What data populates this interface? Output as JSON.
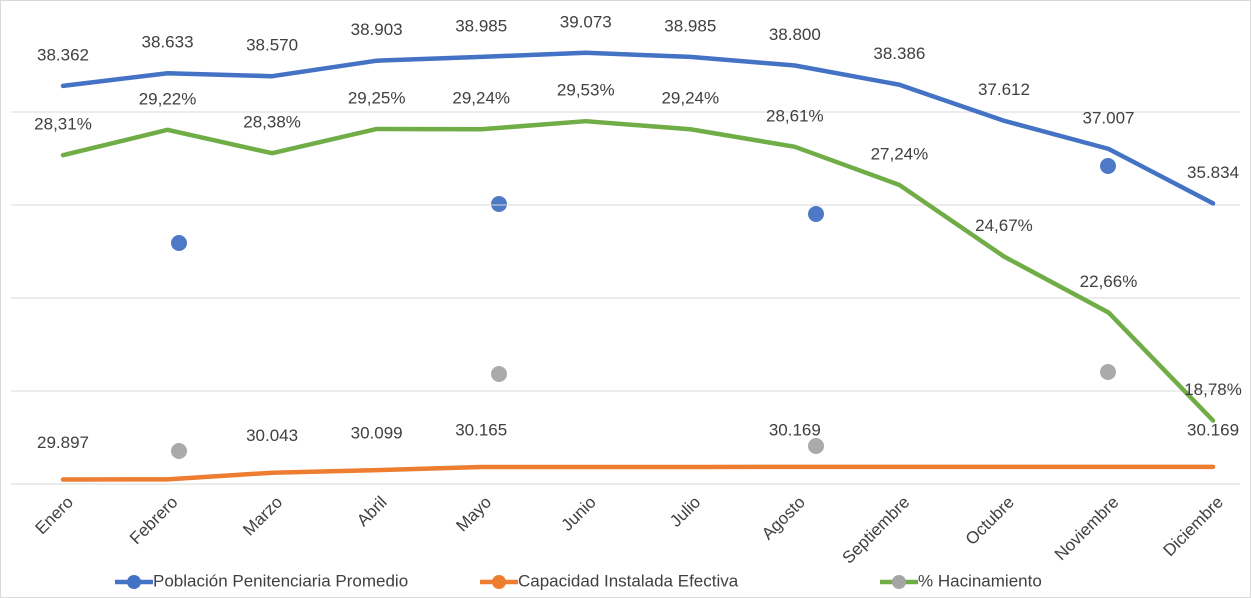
{
  "chart_data": {
    "type": "line",
    "categories": [
      "Enero",
      "Febrero",
      "Marzo",
      "Abril",
      "Mayo",
      "Junio",
      "Julio",
      "Agosto",
      "Septiembre",
      "Octubre",
      "Noviembre",
      "Diciembre"
    ],
    "series": [
      {
        "name": "Población Penitenciaria Promedio",
        "color": "#4472c4",
        "values": [
          38362,
          38633,
          38570,
          38903,
          38985,
          39073,
          38985,
          38800,
          38386,
          37612,
          37007,
          35834
        ],
        "value_labels": [
          "38.362",
          "38.633",
          "38.570",
          "38.903",
          "38.985",
          "39.073",
          "38.985",
          "38.800",
          "38.386",
          "37.612",
          "37.007",
          "35.834"
        ]
      },
      {
        "name": "Capacidad Instalada Efectiva",
        "color": "#ed7d31",
        "values": [
          29897,
          29900,
          30043,
          30099,
          30165,
          30165,
          30165,
          30169,
          30169,
          30169,
          30169,
          30169
        ],
        "value_labels": [
          "29.897",
          null,
          "30.043",
          "30.099",
          "30.165",
          null,
          null,
          "30.169",
          null,
          null,
          null,
          "30.169"
        ]
      },
      {
        "name": "% Hacinamiento",
        "color": "#70ad47",
        "axis": "y2",
        "values": [
          28.31,
          29.22,
          28.38,
          29.25,
          29.24,
          29.53,
          29.24,
          28.61,
          27.24,
          24.67,
          22.66,
          18.78
        ],
        "value_labels": [
          "28,31%",
          "29,22%",
          "28,38%",
          "29,25%",
          "29,24%",
          "29,53%",
          "29,24%",
          "28,61%",
          "27,24%",
          "24,67%",
          "22,66%",
          "18,78%"
        ]
      }
    ],
    "ylim": [
      29800,
      39800
    ],
    "yticks": [
      29800,
      31800,
      33800,
      35800,
      37800
    ],
    "y2lim": [
      16.5,
      33.2
    ],
    "grid": true,
    "legend": "bottom"
  }
}
